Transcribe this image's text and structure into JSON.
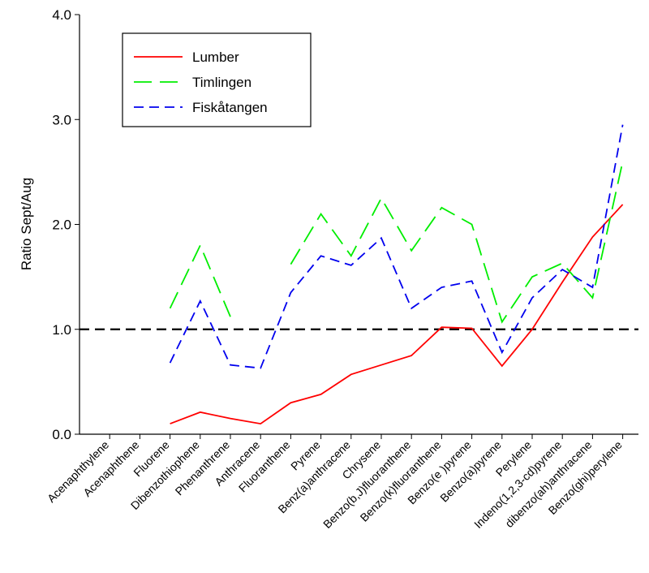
{
  "chart_data": {
    "type": "line",
    "y_label": "Ratio Sept/Aug",
    "categories": [
      "Acenaphthylene",
      "Acenaphthene",
      "Fluorene",
      "Dibenzothiophene",
      "Phenanthrene",
      "Anthracene",
      "Fluoranthene",
      "Pyrene",
      "Benz(a)anthracene",
      "Chrysene",
      "Benzo(b,J)fluoranthene",
      "Benzo(k)fluoranthene",
      "Benzo(e )pyrene",
      "Benzo(a)pyrene",
      "Perylene",
      "Indeno(1,2,3-cd)pyrene",
      "dibenzo(ah)anthracene",
      "Benzo(ghi)perylene"
    ],
    "series": [
      {
        "name": "Lumber",
        "color": "#ff0000",
        "style": "solid",
        "values": [
          null,
          null,
          0.1,
          0.21,
          0.15,
          0.1,
          0.3,
          0.38,
          0.57,
          0.66,
          0.75,
          1.02,
          1.01,
          0.65,
          1.0,
          1.45,
          1.88,
          2.19
        ]
      },
      {
        "name": "Timlingen",
        "color": "#00ee00",
        "style": "long-dash",
        "values": [
          null,
          null,
          1.2,
          1.8,
          1.12,
          null,
          1.62,
          2.1,
          1.7,
          2.25,
          1.75,
          2.16,
          2.0,
          1.07,
          1.5,
          1.63,
          1.3,
          2.6
        ]
      },
      {
        "name": "Fiskåtangen",
        "color": "#0000ee",
        "style": "dash",
        "values": [
          null,
          null,
          0.68,
          1.27,
          0.66,
          0.63,
          1.35,
          1.7,
          1.61,
          1.87,
          1.2,
          1.4,
          1.46,
          0.78,
          1.3,
          1.57,
          1.4,
          2.95
        ]
      }
    ],
    "reference_line": 1,
    "ylim": [
      0,
      4
    ],
    "yticks": [
      {
        "value": 0,
        "label": "0.0"
      },
      {
        "value": 1,
        "label": "1.0"
      },
      {
        "value": 2,
        "label": "2.0"
      },
      {
        "value": 3,
        "label": "3.0"
      },
      {
        "value": 4,
        "label": "4.0"
      }
    ],
    "legend": "upper-left"
  }
}
